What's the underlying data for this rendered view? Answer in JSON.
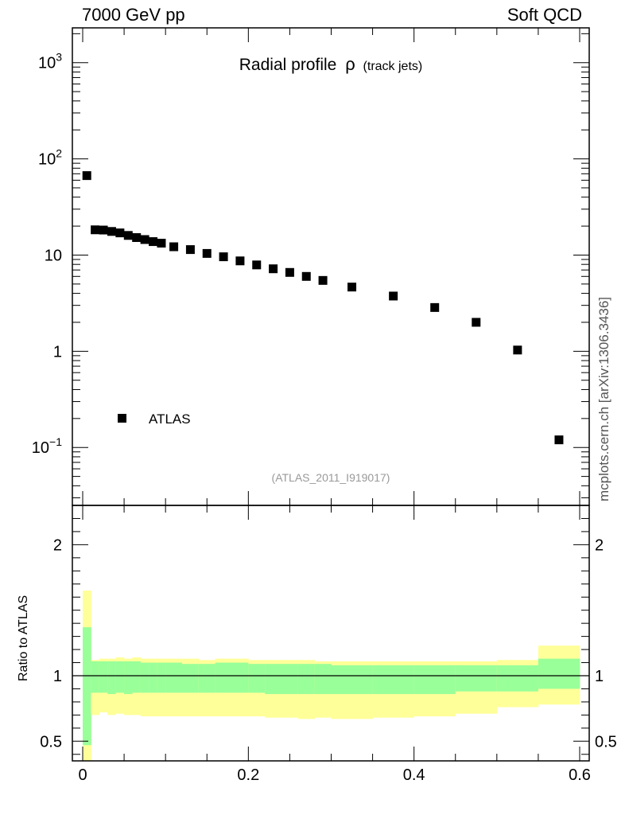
{
  "header": {
    "left": "7000 GeV pp",
    "right": "Soft QCD"
  },
  "side_label": "mcplots.cern.ch [arXiv:1306.3436]",
  "chart_data": {
    "type": "scatter",
    "title": "Radial profile",
    "title_symbol": "ρ",
    "title_suffix": "(track jets)",
    "analysis_tag": "(ATLAS_2011_I919017)",
    "xlim": [
      0,
      0.6
    ],
    "x_tick_labels": [
      "0",
      "0.2",
      "0.4",
      "0.6"
    ],
    "main": {
      "scale": "log",
      "ylim": [
        0.025,
        2300
      ],
      "y_tick_labels": [
        {
          "value": 1000,
          "base": "10",
          "exp": "3"
        },
        {
          "value": 100,
          "base": "10",
          "exp": "2"
        },
        {
          "value": 10,
          "base": "10",
          "exp": ""
        },
        {
          "value": 1,
          "base": "1",
          "exp": ""
        },
        {
          "value": 0.1,
          "base": "10",
          "exp": "−1"
        }
      ],
      "legend_entry": "ATLAS",
      "series": [
        {
          "name": "ATLAS",
          "x": [
            0.005,
            0.015,
            0.025,
            0.035,
            0.045,
            0.055,
            0.065,
            0.075,
            0.085,
            0.095,
            0.11,
            0.13,
            0.15,
            0.17,
            0.19,
            0.21,
            0.23,
            0.25,
            0.27,
            0.29,
            0.325,
            0.375,
            0.425,
            0.475,
            0.525,
            0.575
          ],
          "y": [
            67,
            18.3,
            18.2,
            17.6,
            17.0,
            16.0,
            15.2,
            14.5,
            13.8,
            13.3,
            12.2,
            11.4,
            10.4,
            9.6,
            8.7,
            7.9,
            7.2,
            6.6,
            6.0,
            5.45,
            4.65,
            3.75,
            2.85,
            2.0,
            1.03,
            0.12
          ]
        }
      ]
    },
    "ratio": {
      "ylabel": "Ratio to ATLAS",
      "ylim": [
        0.35,
        2.3
      ],
      "y_ticks": [
        0.5,
        1,
        2
      ],
      "y_tick_labels": [
        "0.5",
        "1",
        "2"
      ],
      "reference": 1,
      "bands": {
        "x_edges": [
          0,
          0.01,
          0.02,
          0.03,
          0.04,
          0.05,
          0.06,
          0.07,
          0.08,
          0.09,
          0.1,
          0.12,
          0.14,
          0.16,
          0.18,
          0.2,
          0.22,
          0.24,
          0.26,
          0.28,
          0.3,
          0.35,
          0.4,
          0.45,
          0.5,
          0.55,
          0.6
        ],
        "inner_lo": [
          0.47,
          0.87,
          0.87,
          0.86,
          0.87,
          0.86,
          0.87,
          0.87,
          0.87,
          0.87,
          0.87,
          0.87,
          0.87,
          0.87,
          0.87,
          0.87,
          0.86,
          0.86,
          0.86,
          0.86,
          0.86,
          0.86,
          0.86,
          0.88,
          0.88,
          0.9
        ],
        "inner_hi": [
          1.37,
          1.11,
          1.11,
          1.11,
          1.11,
          1.11,
          1.11,
          1.1,
          1.1,
          1.1,
          1.1,
          1.09,
          1.09,
          1.1,
          1.1,
          1.09,
          1.09,
          1.09,
          1.09,
          1.09,
          1.08,
          1.08,
          1.08,
          1.08,
          1.08,
          1.13
        ],
        "outer_lo": [
          0.3,
          0.7,
          0.72,
          0.7,
          0.71,
          0.7,
          0.7,
          0.69,
          0.69,
          0.69,
          0.69,
          0.69,
          0.69,
          0.69,
          0.69,
          0.69,
          0.68,
          0.68,
          0.67,
          0.68,
          0.67,
          0.68,
          0.69,
          0.71,
          0.76,
          0.78
        ],
        "outer_hi": [
          1.65,
          1.12,
          1.13,
          1.13,
          1.14,
          1.13,
          1.14,
          1.13,
          1.13,
          1.13,
          1.13,
          1.13,
          1.12,
          1.13,
          1.13,
          1.12,
          1.12,
          1.12,
          1.12,
          1.11,
          1.11,
          1.11,
          1.11,
          1.11,
          1.12,
          1.23
        ]
      },
      "inner_color": "#99ff99",
      "outer_color": "#ffff99"
    }
  }
}
